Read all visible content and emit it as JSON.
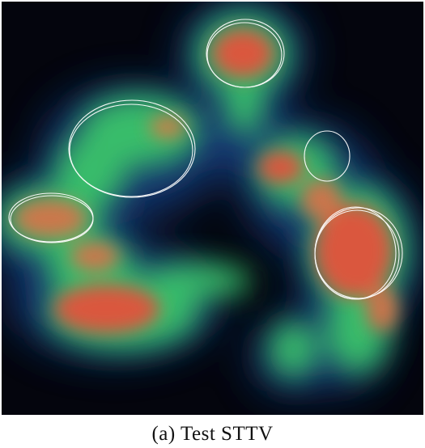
{
  "figure": {
    "caption": "(a)  Test STTV"
  },
  "colors": {
    "background": "#04050d",
    "low": "#10205a",
    "mid": "#36c26a",
    "high": "#e8503a",
    "outline": "#ffffff"
  }
}
